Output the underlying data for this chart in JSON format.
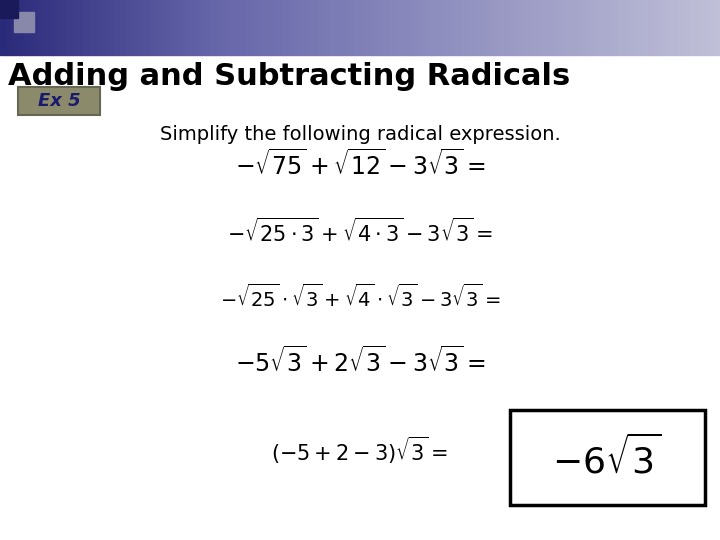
{
  "title": "Adding and Subtracting Radicals",
  "ex_label": "Ex 5",
  "subtitle": "Simplify the following radical expression.",
  "background_color": "#ffffff",
  "title_color": "#000000",
  "ex_box_bg": "#8B8B6B",
  "ex_box_text_color": "#1a1a6e",
  "subtitle_color": "#000000",
  "math_lines": [
    "-\\sqrt{75}+\\sqrt{12}-3\\sqrt{3}=",
    "-\\sqrt{25 \\cdot 3}+\\sqrt{4 \\cdot 3}-3\\sqrt{3}=",
    "-\\sqrt{25}\\cdot\\sqrt{3}+\\sqrt{4}\\cdot\\sqrt{3}-3\\sqrt{3}=",
    "-5\\sqrt{3}+2\\sqrt{3}-3\\sqrt{3}=",
    "(-5+2-3)\\sqrt{3}="
  ],
  "answer": "-6\\sqrt{3}",
  "gradient_dark": "#2a2a6e",
  "gradient_light": "#c8c8d8",
  "small_sq_dark": "#1a1a5a",
  "small_sq_light": "#8888aa"
}
